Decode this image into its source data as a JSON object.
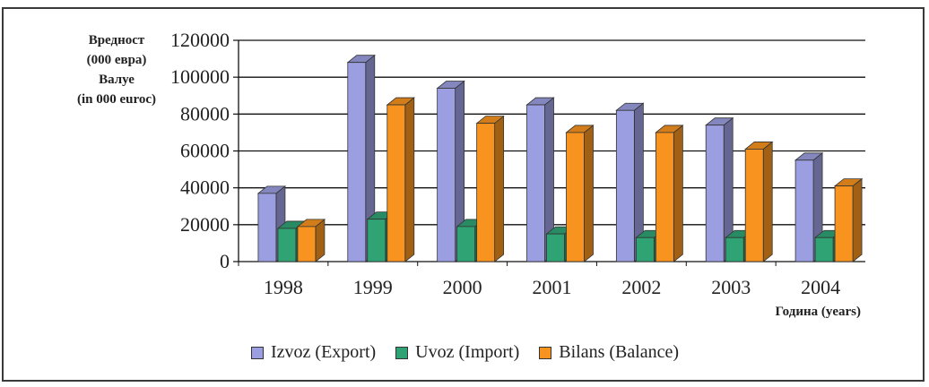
{
  "chart_data": {
    "type": "bar",
    "title": "",
    "ylabel_lines": [
      "Вредност",
      "(000 евра)",
      "Валуе",
      "(in 000 euroс)"
    ],
    "xlabel": "Година (years)",
    "categories": [
      "1998",
      "1999",
      "2000",
      "2001",
      "2002",
      "2003",
      "2004"
    ],
    "ylim": [
      0,
      120000
    ],
    "yticks": [
      "120000",
      "100000",
      "80000",
      "60000",
      "40000",
      "20000",
      "0"
    ],
    "grid": true,
    "legend_position": "bottom",
    "series": [
      {
        "name": "Izvoz (Export)",
        "color": "#9b9ee0",
        "values": [
          37000,
          108000,
          94000,
          85000,
          82000,
          74000,
          55000
        ]
      },
      {
        "name": "Uvoz (Import)",
        "color": "#2fa374",
        "values": [
          18000,
          23000,
          19000,
          15000,
          13000,
          13000,
          13000
        ]
      },
      {
        "name": "Bilans (Balance)",
        "color": "#f7931e",
        "values": [
          19000,
          85000,
          75000,
          70000,
          70000,
          61000,
          41000
        ]
      }
    ]
  }
}
